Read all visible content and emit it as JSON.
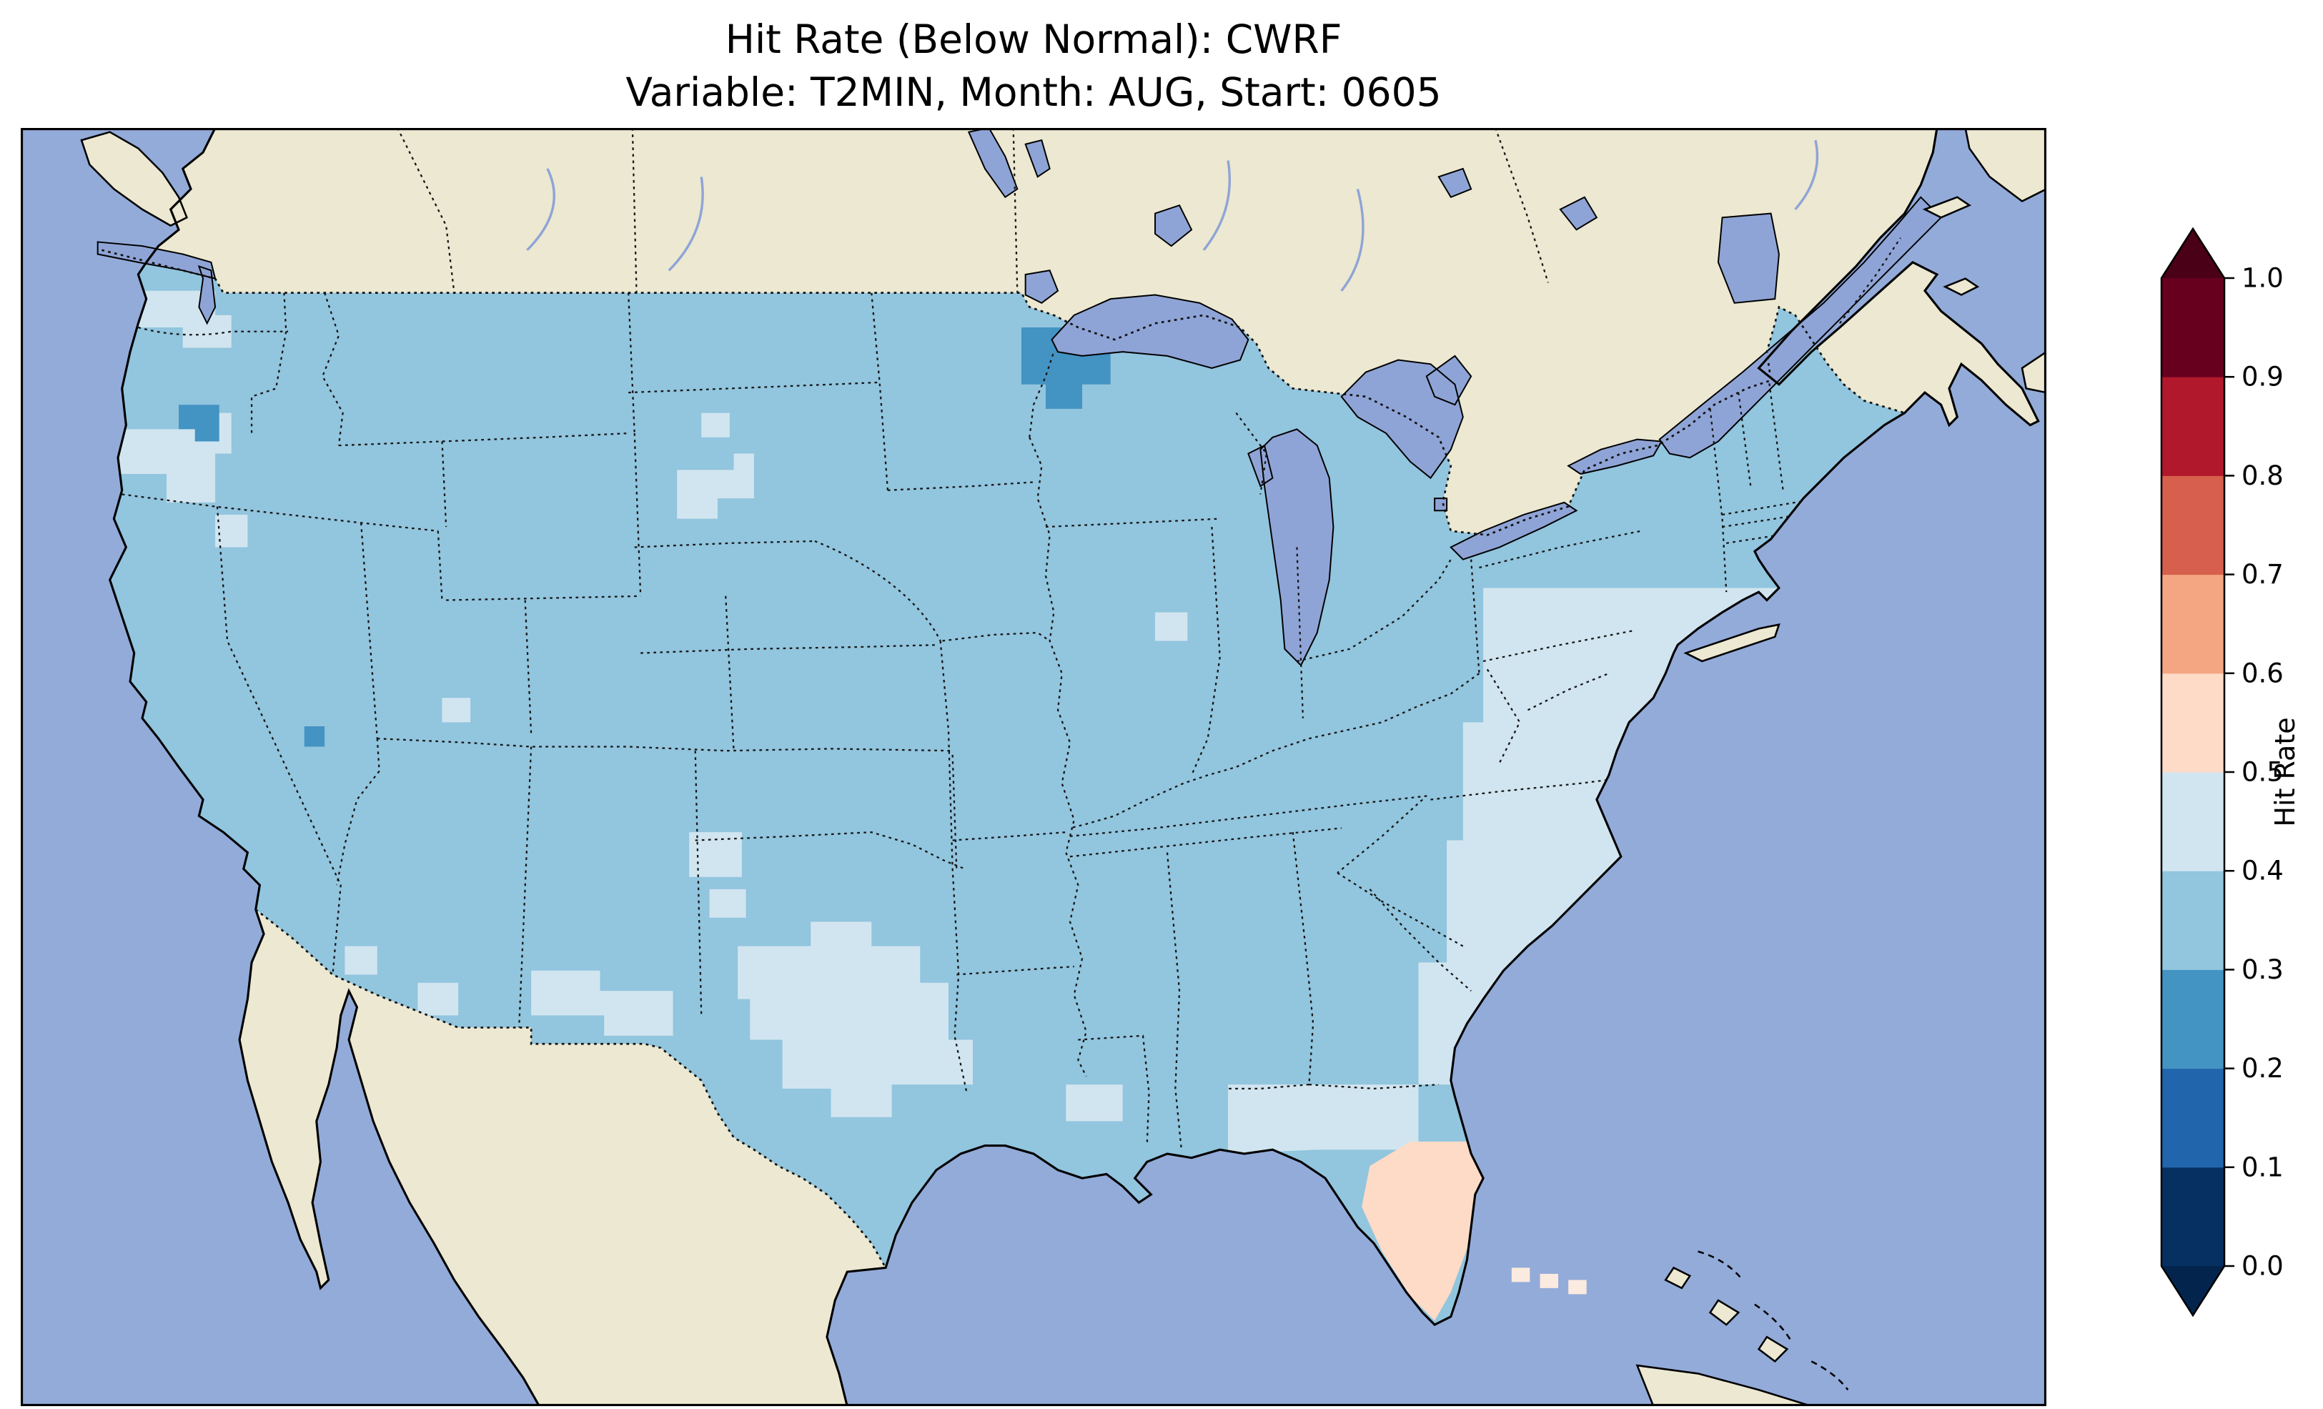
{
  "title": {
    "line1": "Hit Rate (Below Normal): CWRF",
    "line2": "Variable: T2MIN, Month: AUG, Start: 0605"
  },
  "colorbar": {
    "label": "Hit Rate",
    "ticks": [
      "0.0",
      "0.1",
      "0.2",
      "0.3",
      "0.4",
      "0.5",
      "0.6",
      "0.7",
      "0.8",
      "0.9",
      "1.0"
    ],
    "bin_colors": [
      "#053061",
      "#2166ac",
      "#4393c3",
      "#92c5de",
      "#d1e5f0",
      "#fddbc7",
      "#f4a582",
      "#d6604d",
      "#b2182b",
      "#67001f"
    ],
    "under_color": "#03254d",
    "over_color": "#4a0016"
  },
  "map_colors": {
    "ocean": "#93abd9",
    "land": "#ece8d1",
    "lake": "#8fa4d6",
    "offshore_cell": "#fbeadf",
    "coastline": "#000000"
  },
  "chart_data": {
    "type": "heatmap",
    "title": "Hit Rate (Below Normal): CWRF",
    "subtitle": "Variable: T2MIN, Month: AUG, Start: 0605",
    "model": "CWRF",
    "metric": "Hit Rate",
    "category": "Below Normal",
    "variable": "T2MIN",
    "month": "AUG",
    "start": "0605",
    "colorbar_label": "Hit Rate",
    "colorbar_range": [
      0.0,
      1.0
    ],
    "colorbar_ticks": [
      0.0,
      0.1,
      0.2,
      0.3,
      0.4,
      0.5,
      0.6,
      0.7,
      0.8,
      0.9,
      1.0
    ],
    "bin_size": 0.1,
    "extend": "both",
    "geography": "Contiguous United States gridded field over North America basemap",
    "regions": [
      {
        "region": "CONUS dominant field (most of the West, Plains, Midwest, interior South, New England)",
        "hit_rate_bin": "0.3-0.4"
      },
      {
        "region": "Mid-Atlantic and Southeast coastal band (PA, NJ, MD, VA, NC, SC, GA)",
        "hit_rate_bin": "0.4-0.5"
      },
      {
        "region": "Central and eastern Texas band",
        "hit_rate_bin": "0.4-0.5"
      },
      {
        "region": "Southern New Mexico / southeast Arizona spots",
        "hit_rate_bin": "0.4-0.5"
      },
      {
        "region": "Southeast Oregon / northwest Nevada patches",
        "hit_rate_bin": "0.4-0.5"
      },
      {
        "region": "Central Washington patch",
        "hit_rate_bin": "0.4-0.5"
      },
      {
        "region": "Central South Dakota patch",
        "hit_rate_bin": "0.4-0.5"
      },
      {
        "region": "Florida panhandle and north Florida",
        "hit_rate_bin": "0.4-0.5"
      },
      {
        "region": "North-central Minnesota blob",
        "hit_rate_bin": "0.2-0.3"
      },
      {
        "region": "North-central Oregon spot",
        "hit_rate_bin": "0.2-0.3"
      },
      {
        "region": "Small Nevada/Utah border cell",
        "hit_rate_bin": "0.2-0.3"
      },
      {
        "region": "Florida peninsula",
        "hit_rate_bin": "0.5-0.6"
      }
    ]
  }
}
